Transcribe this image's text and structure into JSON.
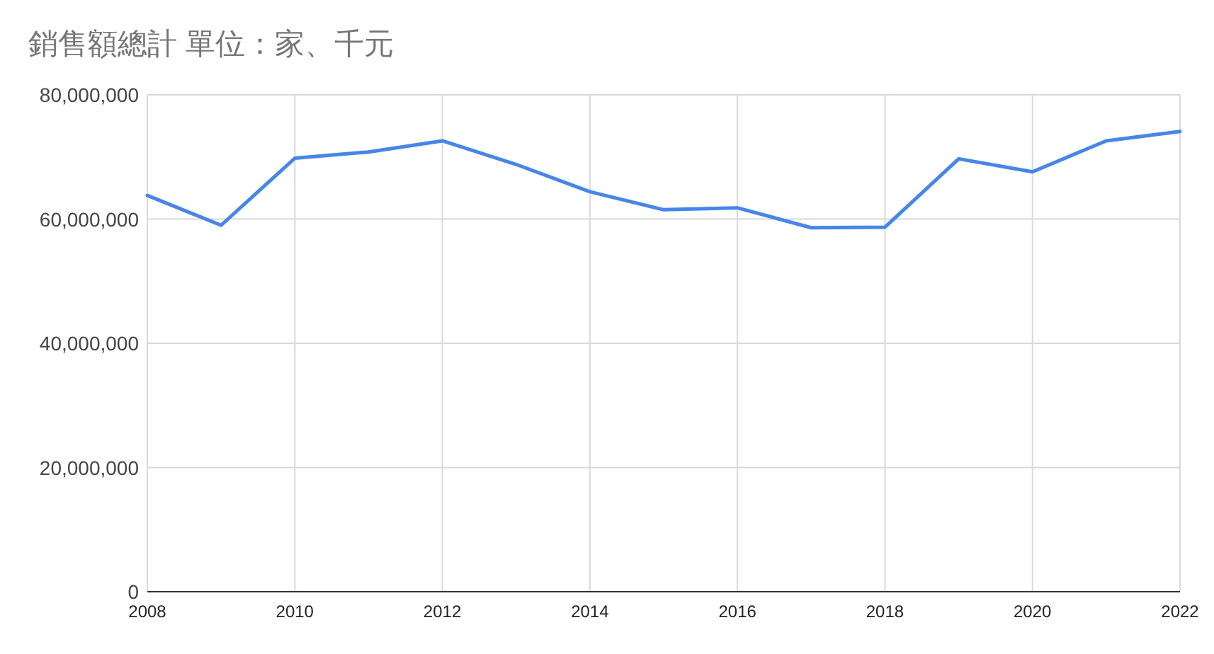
{
  "chart_data": {
    "type": "line",
    "title": "銷售額總計 單位：家、千元",
    "x": [
      2008,
      2009,
      2010,
      2011,
      2012,
      2013,
      2014,
      2015,
      2016,
      2017,
      2018,
      2019,
      2020,
      2021,
      2022
    ],
    "series": [
      {
        "color": "#4285f4",
        "values": [
          63800000,
          59000000,
          69800000,
          70800000,
          72600000,
          68800000,
          64400000,
          61500000,
          61800000,
          58600000,
          58700000,
          69700000,
          67600000,
          72600000,
          74100000
        ]
      }
    ],
    "xlim": [
      2008,
      2022
    ],
    "xticks": [
      2008,
      2010,
      2012,
      2014,
      2016,
      2018,
      2020,
      2022
    ],
    "ylim": [
      0,
      80000000
    ],
    "yticks": [
      0,
      {
        "value": 20000000,
        "label": "20,000,000"
      },
      {
        "value": 40000000,
        "label": "40,000,000"
      },
      {
        "value": 60000000,
        "label": "60,000,000"
      },
      {
        "value": 80000000,
        "label": "80,000,000"
      }
    ],
    "grid": true,
    "marker": "none",
    "line_style": "solid"
  }
}
